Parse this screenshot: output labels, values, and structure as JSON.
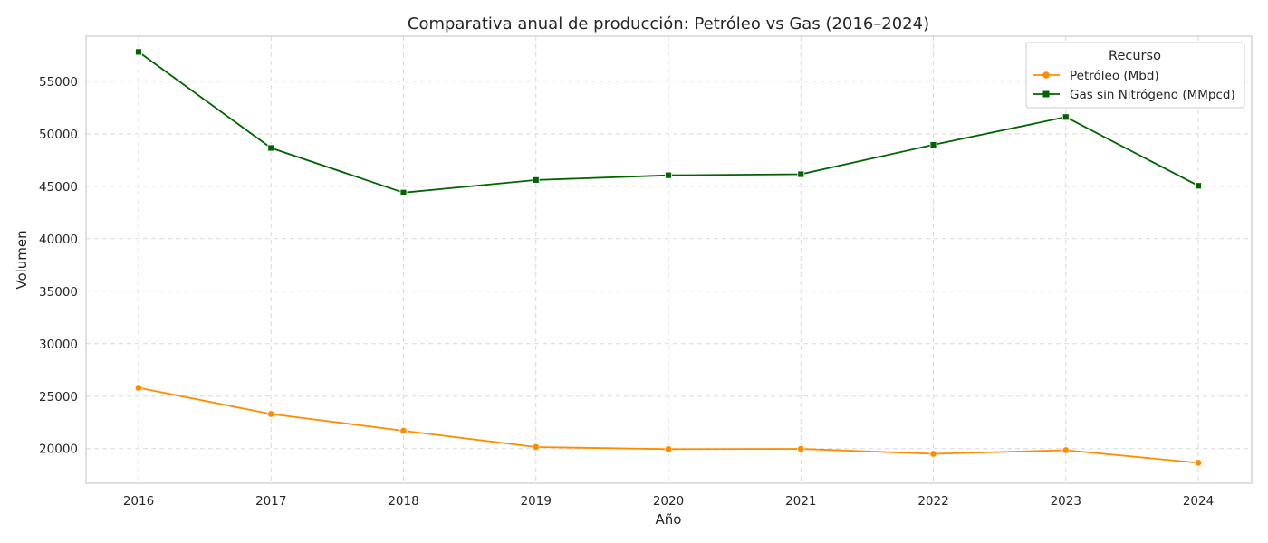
{
  "chart_data": {
    "type": "line",
    "title": "Comparativa anual de producción: Petróleo vs Gas (2016–2024)",
    "xlabel": "Año",
    "ylabel": "Volumen",
    "x": [
      "2016",
      "2017",
      "2018",
      "2019",
      "2020",
      "2021",
      "2022",
      "2023",
      "2024"
    ],
    "ylim": [
      16700,
      59300
    ],
    "yticks": [
      20000,
      25000,
      30000,
      35000,
      40000,
      45000,
      50000,
      55000
    ],
    "grid": true,
    "legend": {
      "title": "Recurso",
      "placement": "top-right"
    },
    "series": [
      {
        "name": "Petróleo (Mbd)",
        "color": "#ff8c00",
        "marker": "circle",
        "values": [
          25800,
          23300,
          21700,
          20150,
          19950,
          19980,
          19500,
          19850,
          18650
        ]
      },
      {
        "name": "Gas sin Nitrógeno (MMpcd)",
        "color": "#006400",
        "marker": "square",
        "values": [
          57800,
          48650,
          44400,
          45600,
          46050,
          46150,
          48950,
          51600,
          45050
        ]
      }
    ]
  }
}
